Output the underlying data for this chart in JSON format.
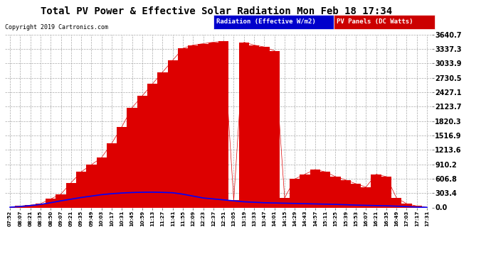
{
  "title": "Total PV Power & Effective Solar Radiation Mon Feb 18 17:34",
  "copyright": "Copyright 2019 Cartronics.com",
  "bg_color": "#ffffff",
  "plot_bg_color": "#ffffff",
  "grid_color": "#aaaaaa",
  "legend_radiation_label": "Radiation (Effective W/m2)",
  "legend_pv_label": "PV Panels (DC Watts)",
  "legend_radiation_bg": "#0000cc",
  "legend_pv_bg": "#cc0000",
  "radiation_line_color": "#0000ff",
  "pv_fill_color": "#dd0000",
  "title_color": "#000000",
  "copyright_color": "#000000",
  "ytick_labels": [
    "0.0",
    "303.4",
    "606.8",
    "910.2",
    "1213.6",
    "1516.9",
    "1820.3",
    "2123.7",
    "2427.1",
    "2730.5",
    "3033.9",
    "3337.3",
    "3640.7"
  ],
  "ytick_values": [
    0.0,
    303.4,
    606.8,
    910.2,
    1213.6,
    1516.9,
    1820.3,
    2123.7,
    2427.1,
    2730.5,
    3033.9,
    3337.3,
    3640.7
  ],
  "ymax": 3640.7,
  "xtick_labels": [
    "07:52",
    "08:07",
    "08:21",
    "08:35",
    "08:50",
    "09:07",
    "09:21",
    "09:35",
    "09:49",
    "10:03",
    "10:17",
    "10:31",
    "10:45",
    "10:59",
    "11:13",
    "11:27",
    "11:41",
    "11:55",
    "12:09",
    "12:23",
    "12:37",
    "12:51",
    "13:05",
    "13:19",
    "13:33",
    "13:47",
    "14:01",
    "14:15",
    "14:29",
    "14:43",
    "14:57",
    "15:11",
    "15:25",
    "15:39",
    "15:53",
    "16:07",
    "16:21",
    "16:35",
    "16:49",
    "17:03",
    "17:17",
    "17:31"
  ],
  "pv_values": [
    10,
    30,
    50,
    80,
    180,
    280,
    520,
    750,
    900,
    1050,
    1350,
    1700,
    2100,
    2350,
    2600,
    2850,
    3100,
    3350,
    3420,
    3450,
    3480,
    3500,
    150,
    3480,
    3420,
    3380,
    3300,
    200,
    600,
    700,
    800,
    750,
    650,
    580,
    500,
    430,
    700,
    650,
    200,
    80,
    30,
    5
  ],
  "radiation_values": [
    5,
    20,
    40,
    65,
    100,
    140,
    175,
    210,
    240,
    270,
    290,
    305,
    315,
    320,
    322,
    318,
    310,
    280,
    240,
    200,
    180,
    160,
    140,
    120,
    110,
    100,
    95,
    90,
    85,
    80,
    75,
    70,
    65,
    58,
    50,
    45,
    40,
    35,
    28,
    18,
    8,
    2
  ]
}
